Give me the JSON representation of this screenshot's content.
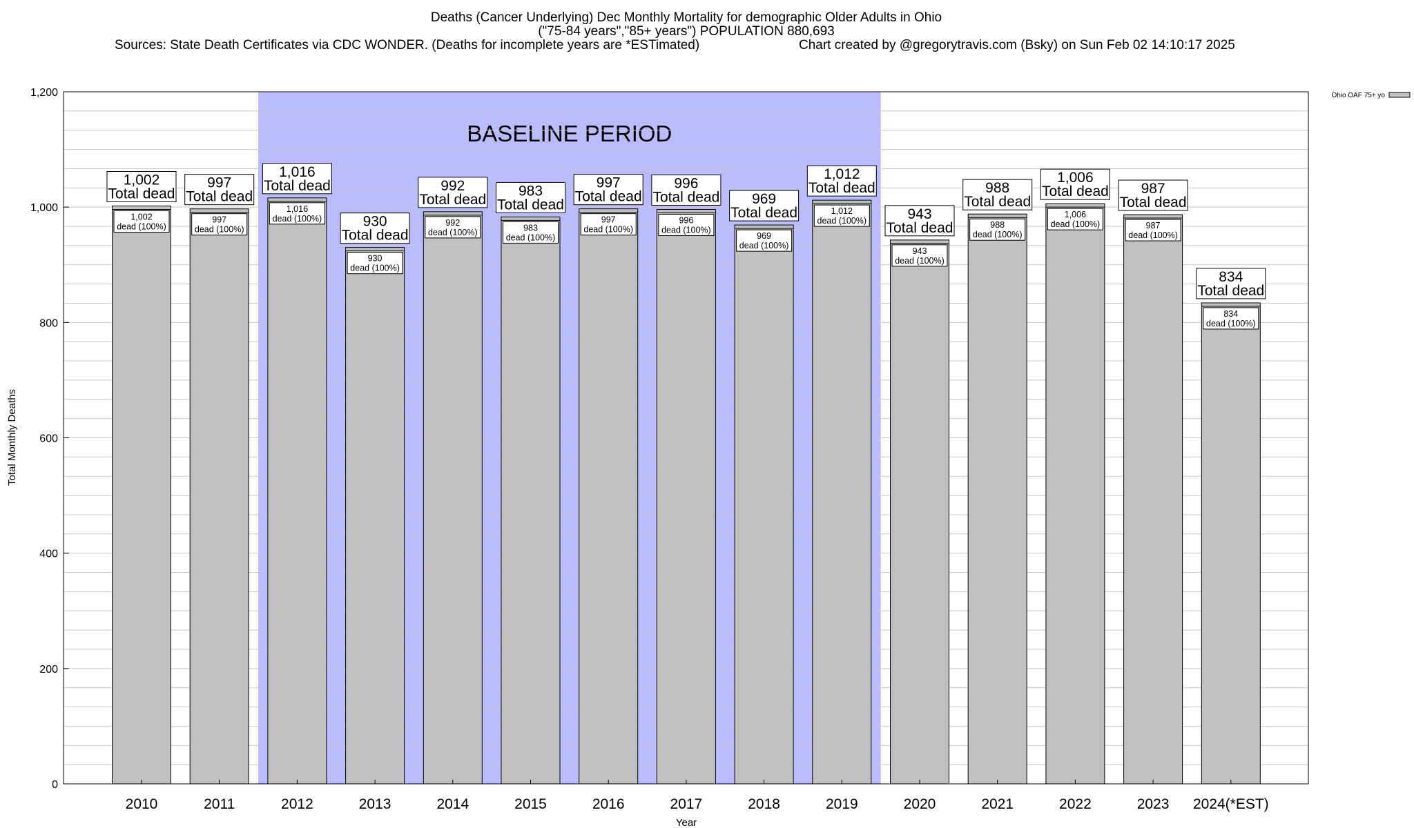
{
  "header": {
    "title_line1": "Deaths (Cancer Underlying) Dec Monthly Mortality for demographic Older Adults in Ohio",
    "title_line2": "(\"75-84 years\",\"85+ years\") POPULATION 880,693",
    "sources": "Sources: State Death Certificates via CDC WONDER. (Deaths for incomplete years are *ESTimated)",
    "credit": "Chart created by @gregorytravis.com (Bsky) on Sun Feb 02 14:10:17 2025"
  },
  "legend": {
    "label": "Ohio OAF 75+ yo",
    "placement": "top-right"
  },
  "baseline": {
    "label": "BASELINE PERIOD",
    "start": "2012",
    "end": "2019",
    "color": "#bbbbff"
  },
  "colors": {
    "bar_fill": "#c0c0c0",
    "bar_stroke": "#000000",
    "grid": "#c8c8c8"
  },
  "chart_data": {
    "type": "bar",
    "xlabel": "Year",
    "ylabel": "Total Monthly Deaths",
    "ylim": [
      0,
      1200
    ],
    "grid": true,
    "yticks": [
      "0",
      "200",
      "400",
      "600",
      "800",
      "1,000",
      "1,200"
    ],
    "categories": [
      "2010",
      "2011",
      "2012",
      "2013",
      "2014",
      "2015",
      "2016",
      "2017",
      "2018",
      "2019",
      "2020",
      "2021",
      "2022",
      "2023",
      "2024(*EST)"
    ],
    "series": [
      {
        "name": "Ohio OAF 75+ yo",
        "values": [
          1002,
          997,
          1016,
          930,
          992,
          983,
          997,
          996,
          969,
          1012,
          943,
          988,
          1006,
          987,
          834
        ],
        "value_labels": [
          "1,002",
          "997",
          "1,016",
          "930",
          "992",
          "983",
          "997",
          "996",
          "969",
          "1,012",
          "943",
          "988",
          "1,006",
          "987",
          "834"
        ]
      }
    ],
    "total_suffix": "Total dead",
    "segment_suffix": "dead (100%)"
  }
}
